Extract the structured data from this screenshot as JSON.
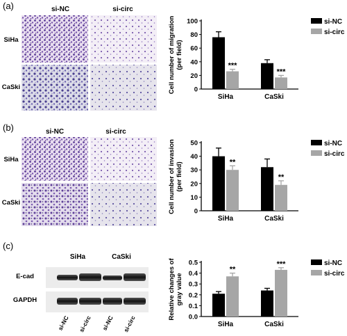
{
  "panels": {
    "a": {
      "label": "(a)",
      "micro_cols": [
        "si-NC",
        "si-circ"
      ],
      "micro_rows": [
        "SiHa",
        "CaSki"
      ]
    },
    "b": {
      "label": "(b)",
      "micro_cols": [
        "si-NC",
        "si-circ"
      ],
      "micro_rows": [
        "SiHa",
        "CaSki"
      ]
    },
    "c": {
      "label": "(c)",
      "blot_groups": [
        "SiHa",
        "CaSki"
      ],
      "blot_rows": [
        "E-cad",
        "GAPDH"
      ],
      "blot_lanes": [
        "si-NC",
        "si-circ",
        "si-NC",
        "si-circ"
      ]
    }
  },
  "colors": {
    "si-NC": "#000000",
    "si-circ": "#a6a6a6",
    "stain_dark": "#5b3c96",
    "stain_light": "#f3eef6"
  },
  "chart_data": [
    {
      "id": "a",
      "type": "bar",
      "categories": [
        "SiHa",
        "CaSki"
      ],
      "ylabel": [
        "Cell number of migration",
        "(per field)"
      ],
      "ylim": [
        0,
        100
      ],
      "yticks": [
        "0",
        "20",
        "40",
        "60",
        "80",
        "100"
      ],
      "series": [
        {
          "name": "si-NC",
          "values": [
            76,
            38
          ],
          "errors": [
            8,
            5
          ]
        },
        {
          "name": "si-circ",
          "values": [
            26,
            17
          ],
          "errors": [
            3,
            3
          ]
        }
      ],
      "significance": [
        "***",
        "***"
      ],
      "legend": "top-right"
    },
    {
      "id": "b",
      "type": "bar",
      "categories": [
        "SiHa",
        "CaSki"
      ],
      "ylabel": [
        "Cell number of invasion",
        "(per field)"
      ],
      "ylim": [
        0,
        50
      ],
      "yticks": [
        "0",
        "10",
        "20",
        "30",
        "40",
        "50"
      ],
      "series": [
        {
          "name": "si-NC",
          "values": [
            40,
            32
          ],
          "errors": [
            6,
            6
          ]
        },
        {
          "name": "si-circ",
          "values": [
            30,
            19
          ],
          "errors": [
            3,
            3
          ]
        }
      ],
      "significance": [
        "**",
        "**"
      ],
      "legend": "top-right"
    },
    {
      "id": "c",
      "type": "bar",
      "categories": [
        "SiHa",
        "CaSki"
      ],
      "ylabel": [
        "Relative changes of",
        "gray value"
      ],
      "ylim": [
        0,
        0.5
      ],
      "yticks": [
        "0.0",
        "0.1",
        "0.2",
        "0.3",
        "0.4",
        "0.5"
      ],
      "series": [
        {
          "name": "si-NC",
          "values": [
            0.21,
            0.24
          ],
          "errors": [
            0.02,
            0.02
          ]
        },
        {
          "name": "si-circ",
          "values": [
            0.37,
            0.43
          ],
          "errors": [
            0.03,
            0.02
          ]
        }
      ],
      "significance": [
        "**",
        "***"
      ],
      "legend": "top-right"
    }
  ]
}
